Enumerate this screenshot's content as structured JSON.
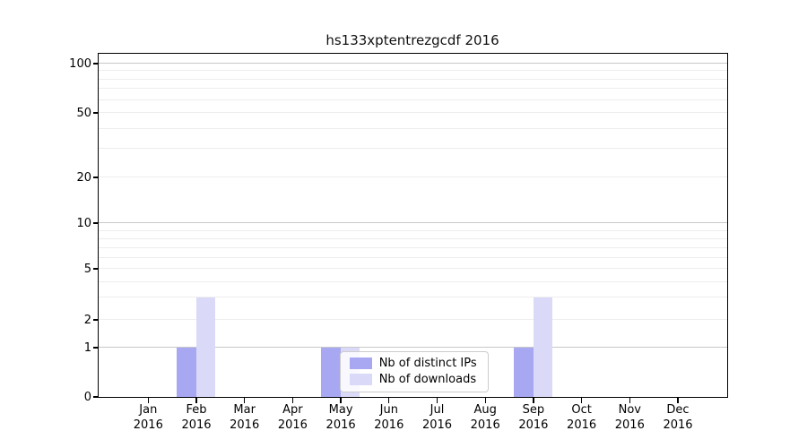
{
  "chart_data": {
    "type": "bar",
    "title": "hs133xptentrezgcdf 2016",
    "categories": [
      {
        "label": "Jan",
        "sub": "2016"
      },
      {
        "label": "Feb",
        "sub": "2016"
      },
      {
        "label": "Mar",
        "sub": "2016"
      },
      {
        "label": "Apr",
        "sub": "2016"
      },
      {
        "label": "May",
        "sub": "2016"
      },
      {
        "label": "Jun",
        "sub": "2016"
      },
      {
        "label": "Jul",
        "sub": "2016"
      },
      {
        "label": "Aug",
        "sub": "2016"
      },
      {
        "label": "Sep",
        "sub": "2016"
      },
      {
        "label": "Oct",
        "sub": "2016"
      },
      {
        "label": "Nov",
        "sub": "2016"
      },
      {
        "label": "Dec",
        "sub": "2016"
      }
    ],
    "series": [
      {
        "name": "Nb of distinct IPs",
        "color": "#a8a8f2",
        "values": [
          0,
          1,
          0,
          0,
          1,
          0,
          0,
          0,
          1,
          0,
          0,
          0
        ]
      },
      {
        "name": "Nb of downloads",
        "color": "#dadaf8",
        "values": [
          0,
          3,
          0,
          0,
          1,
          0,
          0,
          0,
          3,
          0,
          0,
          0
        ]
      }
    ],
    "y_axis": {
      "scale": "symlog",
      "ticks": [
        0,
        1,
        2,
        5,
        10,
        20,
        50,
        100
      ],
      "major_gridlines": [
        1,
        10,
        100
      ],
      "minor_gridlines": [
        2,
        3,
        4,
        5,
        6,
        7,
        8,
        9,
        20,
        30,
        40,
        50,
        60,
        70,
        80,
        90
      ]
    },
    "legend": {
      "entries": [
        "Nb of distinct IPs",
        "Nb of downloads"
      ],
      "position": "lower center"
    },
    "colors": {
      "spine": "#000000",
      "major_grid": "#c8c8c8",
      "minor_grid": "#ededed",
      "background": "#ffffff"
    }
  }
}
